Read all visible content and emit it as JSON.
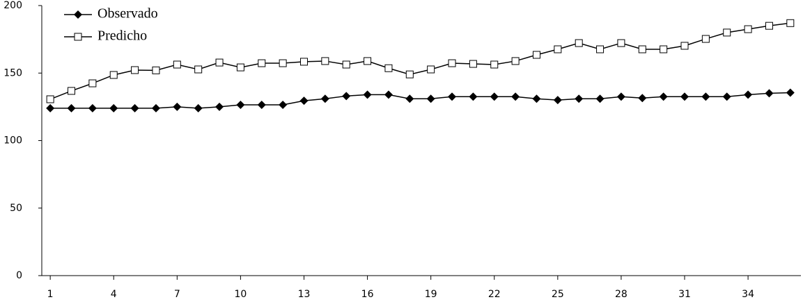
{
  "chart_data": {
    "type": "line",
    "x": [
      1,
      2,
      3,
      4,
      5,
      6,
      7,
      8,
      9,
      10,
      11,
      12,
      13,
      14,
      15,
      16,
      17,
      18,
      19,
      20,
      21,
      22,
      23,
      24,
      25,
      26,
      27,
      28,
      29,
      30,
      31,
      32,
      33,
      34,
      35,
      36
    ],
    "xlim": [
      0.6,
      36.5
    ],
    "xticks": [
      1,
      4,
      7,
      10,
      13,
      16,
      19,
      22,
      25,
      28,
      31,
      34
    ],
    "ylim": [
      0,
      200
    ],
    "yticks": [
      0,
      50,
      100,
      150,
      200
    ],
    "legend": "top-left",
    "series": [
      {
        "name": "Observado",
        "color": "#000000",
        "marker": "filled-diamond",
        "values": [
          124,
          124,
          124,
          124,
          124,
          124,
          125,
          124,
          125,
          126.5,
          126.5,
          126.5,
          129.5,
          131,
          133,
          134,
          134,
          131,
          131,
          132.5,
          132.5,
          132.5,
          132.5,
          131,
          130,
          131,
          131,
          132.5,
          131.5,
          132.5,
          132.5,
          132.5,
          132.5,
          134,
          135,
          135.5
        ]
      },
      {
        "name": "Predicho",
        "color": "#000000",
        "marker": "open-square",
        "values": [
          130.6,
          136.8,
          142.4,
          148.6,
          152.2,
          152,
          156.3,
          152.7,
          157.8,
          154.2,
          157.3,
          157.3,
          158.4,
          158.9,
          156.3,
          158.9,
          153.6,
          149,
          152.7,
          157.3,
          156.8,
          156.3,
          158.9,
          163.5,
          167.6,
          172.2,
          167.6,
          172.2,
          167.6,
          167.6,
          170.2,
          175.3,
          180,
          182.5,
          185,
          187
        ]
      }
    ]
  }
}
